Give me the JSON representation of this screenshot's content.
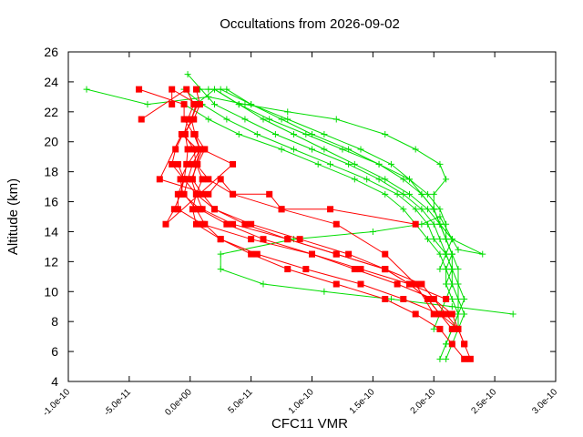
{
  "chart_data": {
    "type": "line",
    "title": "Occultations from 2026-09-02",
    "xlabel": "CFC11 VMR",
    "ylabel": "Altitude (km)",
    "xlim": [
      -1e-10,
      3e-10
    ],
    "ylim": [
      4,
      26
    ],
    "x_ticks": [
      {
        "value": -1e-10,
        "label": "-1.0e-10"
      },
      {
        "value": -5e-11,
        "label": "-5.0e-11"
      },
      {
        "value": 0,
        "label": "0.0e+00"
      },
      {
        "value": 5e-11,
        "label": "5.0e-11"
      },
      {
        "value": 1e-10,
        "label": "1.0e-10"
      },
      {
        "value": 1.5e-10,
        "label": "1.5e-10"
      },
      {
        "value": 2e-10,
        "label": "2.0e-10"
      },
      {
        "value": 2.5e-10,
        "label": "2.5e-10"
      },
      {
        "value": 3e-10,
        "label": "3.0e-10"
      }
    ],
    "y_ticks": [
      {
        "value": 4,
        "label": "4"
      },
      {
        "value": 6,
        "label": "6"
      },
      {
        "value": 8,
        "label": "8"
      },
      {
        "value": 10,
        "label": "10"
      },
      {
        "value": 12,
        "label": "12"
      },
      {
        "value": 14,
        "label": "14"
      },
      {
        "value": 16,
        "label": "16"
      },
      {
        "value": 18,
        "label": "18"
      },
      {
        "value": 20,
        "label": "20"
      },
      {
        "value": 22,
        "label": "22"
      },
      {
        "value": 24,
        "label": "24"
      },
      {
        "value": 26,
        "label": "26"
      }
    ],
    "grid": false,
    "colors": {
      "series_a": "#ff0000",
      "series_b": "#00dd00"
    },
    "series": [
      {
        "marker": "square",
        "color": "#ff0000",
        "x": [
          2.3e-10,
          2.25e-10,
          2.2e-10,
          2.05e-10,
          1.75e-10,
          1.4e-10,
          9.5e-11,
          5.5e-11,
          2.5e-11,
          5e-12,
          2e-12,
          5e-12,
          1e-11,
          5e-12,
          3e-12,
          -5e-12,
          -2e-12,
          3e-12,
          -3e-12,
          -4e-11
        ],
        "y": [
          5.5,
          6.5,
          7.5,
          8.5,
          9.5,
          10.5,
          11.5,
          12.5,
          13.5,
          14.5,
          15.5,
          16.5,
          17.5,
          18.5,
          19.5,
          20.5,
          21.5,
          22.5,
          23.5,
          21.5
        ]
      },
      {
        "marker": "square",
        "color": "#ff0000",
        "x": [
          2.25e-10,
          2.15e-10,
          2.05e-10,
          1.85e-10,
          1.6e-10,
          1.2e-10,
          8e-11,
          5e-11,
          2.5e-11,
          1.2e-11,
          5e-12,
          -5e-12,
          -2e-12,
          2e-12,
          8e-12,
          3e-12,
          -5e-12,
          -5e-12,
          -4.2e-11
        ],
        "y": [
          5.5,
          6.5,
          7.5,
          8.5,
          9.5,
          10.5,
          11.5,
          12.5,
          13.5,
          14.5,
          15.5,
          16.5,
          17.5,
          18.5,
          19.5,
          20.5,
          21.5,
          22.5,
          23.5
        ]
      },
      {
        "marker": "square",
        "color": "#ff0000",
        "x": [
          2.25e-10,
          2.2e-10,
          2.15e-10,
          2e-10,
          1.9e-10,
          1.6e-10,
          1.2e-10,
          8e-11,
          4.5e-11,
          2e-11,
          1e-11,
          2e-12,
          5e-12,
          8e-12,
          4e-12,
          1e-12,
          6e-12,
          -1.5e-11,
          -1.5e-11
        ],
        "y": [
          6.5,
          7.5,
          8.5,
          9.5,
          10.5,
          11.5,
          12.5,
          13.5,
          14.5,
          15.5,
          16.5,
          17.5,
          18.5,
          19.5,
          20.5,
          21.5,
          22.5,
          23.5,
          22.5
        ]
      },
      {
        "marker": "square",
        "color": "#ff0000",
        "x": [
          2.2e-10,
          2.1e-10,
          2e-10,
          1.7e-10,
          1.35e-10,
          1e-10,
          5e-11,
          1e-11,
          -1e-11,
          -1e-11,
          -5e-12,
          -3e-12,
          -2e-12,
          -4e-12,
          1e-12,
          5e-12
        ],
        "y": [
          7.5,
          8.5,
          9.5,
          10.5,
          11.5,
          12.5,
          13.5,
          14.5,
          15.5,
          16.5,
          17.5,
          18.5,
          19.5,
          20.5,
          21.5,
          22.5
        ]
      },
      {
        "marker": "square",
        "color": "#ff0000",
        "x": [
          2.15e-10,
          2.05e-10,
          1.95e-10,
          1.8e-10,
          1.6e-10,
          1.2e-10,
          8e-11,
          3.5e-11,
          1e-11,
          5e-12,
          1e-12,
          6e-12,
          1.2e-11,
          4e-12
        ],
        "y": [
          7.5,
          8.5,
          9.5,
          10.5,
          11.5,
          12.5,
          13.5,
          14.5,
          15.5,
          16.5,
          17.5,
          18.5,
          19.5,
          20.5
        ]
      },
      {
        "marker": "square",
        "color": "#ff0000",
        "x": [
          2.05e-10,
          1.95e-10,
          1.8e-10,
          1.6e-10,
          1.3e-10,
          9e-11,
          5e-11,
          2e-11,
          5e-12,
          -5e-12,
          -1.5e-11,
          -1.2e-11,
          -6e-12,
          3e-12,
          8e-12,
          5e-12
        ],
        "y": [
          8.5,
          9.5,
          10.5,
          11.5,
          12.5,
          13.5,
          14.5,
          15.5,
          16.5,
          17.5,
          18.5,
          19.5,
          20.5,
          21.5,
          22.5,
          23.5
        ]
      },
      {
        "marker": "square",
        "color": "#ff0000",
        "x": [
          2e-10,
          1.85e-10,
          1.6e-10,
          1.2e-10,
          7.5e-11,
          3.5e-11,
          1.5e-11,
          5e-12,
          1e-11,
          3.5e-11,
          -2e-11,
          -1.3e-11,
          -8e-12,
          -5e-12,
          -1e-11
        ],
        "y": [
          8.5,
          10.5,
          12.5,
          14.5,
          15.5,
          16.5,
          17.5,
          18.5,
          19.5,
          18.5,
          14.5,
          15.5,
          16.5,
          17.5,
          18.5
        ]
      },
      {
        "marker": "square",
        "color": "#ff0000",
        "x": [
          2.1e-10,
          1.8e-10,
          1.4e-10,
          1e-10,
          6e-11,
          3e-11,
          8e-12,
          -6e-12,
          -8e-12,
          -2e-12,
          6e-12,
          -7e-12,
          -2.5e-11,
          1.5e-11,
          2.5e-11,
          3.5e-11,
          6.5e-11,
          7.5e-11,
          1.15e-10,
          1.85e-10
        ],
        "y": [
          9.5,
          10.5,
          11.5,
          12.5,
          13.5,
          14.5,
          15.5,
          16.5,
          17.5,
          18.5,
          19.5,
          20.5,
          17.5,
          16.5,
          17.5,
          16.5,
          16.5,
          15.5,
          15.5,
          14.5
        ]
      },
      {
        "marker": "plus",
        "color": "#00dd00",
        "x": [
          2.05e-10,
          2.1e-10,
          2.15e-10,
          2.2e-10,
          2.15e-10,
          2.1e-10,
          2.1e-10,
          2.05e-10,
          1.95e-10,
          1.85e-10,
          1.75e-10,
          1.6e-10,
          1.35e-10,
          1.05e-10,
          7.5e-11,
          4e-11,
          1.5e-11,
          -5e-12
        ],
        "y": [
          5.5,
          6.5,
          7.5,
          8.5,
          9.5,
          10.5,
          11.5,
          12.5,
          13.5,
          14.5,
          15.5,
          16.5,
          17.5,
          18.5,
          19.5,
          20.5,
          21.5,
          22.5
        ]
      },
      {
        "marker": "plus",
        "color": "#00dd00",
        "x": [
          2.1e-10,
          2.15e-10,
          2.2e-10,
          2.25e-10,
          2.2e-10,
          2.15e-10,
          2.15e-10,
          2.1e-10,
          2e-10,
          1.95e-10,
          1.85e-10,
          1.7e-10,
          1.45e-10,
          1.15e-10,
          8.5e-11,
          5.5e-11,
          3e-11,
          1e-11,
          -5e-12
        ],
        "y": [
          5.5,
          6.5,
          7.5,
          8.5,
          9.5,
          10.5,
          11.5,
          12.5,
          13.5,
          14.5,
          15.5,
          16.5,
          17.5,
          18.5,
          19.5,
          20.5,
          21.5,
          22.5,
          23.5
        ]
      },
      {
        "marker": "plus",
        "color": "#00dd00",
        "x": [
          2.1e-10,
          2.15e-10,
          2.2e-10,
          2.2e-10,
          2.2e-10,
          2.15e-10,
          2.1e-10,
          2.05e-10,
          2e-10,
          1.9e-10,
          1.75e-10,
          1.55e-10,
          1.3e-10,
          1e-10,
          7e-11,
          4.5e-11,
          2e-11,
          -2e-12
        ],
        "y": [
          6.5,
          7.5,
          8.5,
          9.5,
          10.5,
          11.5,
          12.5,
          13.5,
          14.5,
          15.5,
          16.5,
          17.5,
          18.5,
          19.5,
          20.5,
          21.5,
          22.5,
          24.5
        ]
      },
      {
        "marker": "plus",
        "color": "#00dd00",
        "x": [
          2.2e-10,
          2.2e-10,
          2.25e-10,
          2.2e-10,
          2.2e-10,
          2.15e-10,
          2.1e-10,
          2.05e-10,
          1.95e-10,
          1.8e-10,
          1.6e-10,
          1.35e-10,
          1.1e-10,
          8.5e-11,
          6e-11,
          4e-11,
          2e-11,
          5e-12
        ],
        "y": [
          7.5,
          8.5,
          9.5,
          10.5,
          11.5,
          12.5,
          13.5,
          14.5,
          15.5,
          16.5,
          17.5,
          18.5,
          19.5,
          20.5,
          21.5,
          22.5,
          23.5,
          22.5
        ]
      },
      {
        "marker": "plus",
        "color": "#00dd00",
        "x": [
          2e-10,
          2.05e-10,
          2.1e-10,
          2.15e-10,
          2.1e-10,
          2.15e-10,
          2.1e-10,
          2.05e-10,
          2e-10,
          1.9e-10,
          1.8e-10,
          1.65e-10,
          1.4e-10,
          1.1e-10,
          8e-11,
          5e-11,
          2.5e-11,
          8e-12
        ],
        "y": [
          7.5,
          8.5,
          9.5,
          10.5,
          11.5,
          12.5,
          13.5,
          14.5,
          15.5,
          16.5,
          17.5,
          18.5,
          19.5,
          20.5,
          21.5,
          22.5,
          23.5,
          23.5
        ]
      },
      {
        "marker": "plus",
        "color": "#00dd00",
        "x": [
          2.65e-10,
          2.15e-10,
          1.65e-10,
          1.1e-10,
          6e-11,
          2.5e-11,
          2.5e-11,
          8.5e-11,
          1.5e-10,
          1.9e-10,
          2.05e-10,
          2.15e-10,
          2.2e-10,
          2.4e-10,
          2.15e-10,
          2.05e-10,
          2e-10,
          2e-10,
          2.1e-10,
          2.05e-10,
          1.85e-10,
          1.6e-10,
          1.2e-10,
          8e-11,
          4.5e-11,
          1.5e-11,
          -3.5e-11,
          -8.5e-11
        ],
        "y": [
          8.5,
          9,
          9.5,
          10,
          10.5,
          11.5,
          12.5,
          13.5,
          14,
          14.5,
          15,
          13.5,
          12.8,
          12.5,
          13.5,
          14.5,
          15.5,
          16.5,
          17.5,
          18.5,
          19.5,
          20.5,
          21.5,
          22,
          22.5,
          23,
          22.5,
          23.5
        ]
      },
      {
        "marker": "plus",
        "color": "#00dd00",
        "x": [
          2.1e-10,
          2.15e-10,
          2.15e-10,
          2.1e-10,
          2.1e-10,
          2.05e-10,
          1.95e-10,
          1.8e-10,
          1.55e-10,
          1.25e-10,
          9.5e-11,
          6.5e-11,
          4e-11,
          2e-11
        ],
        "y": [
          10.5,
          11.5,
          12.5,
          13.5,
          14.5,
          15.5,
          16.5,
          17.5,
          18.5,
          19.5,
          20.5,
          21.5,
          22.5,
          23.5
        ]
      },
      {
        "marker": "plus",
        "color": "#00dd00",
        "x": [
          2.05e-10,
          2.1e-10,
          2.15e-10,
          2.05e-10,
          2e-10,
          1.9e-10,
          1.75e-10,
          1.55e-10,
          1.3e-10,
          1e-10,
          7.5e-11,
          5e-11,
          3e-11,
          1.5e-11
        ],
        "y": [
          11.5,
          12.5,
          13.5,
          14.5,
          15.5,
          16.5,
          17.5,
          18.5,
          19.5,
          20.5,
          21.5,
          22.5,
          23.5,
          23.5
        ]
      }
    ]
  }
}
